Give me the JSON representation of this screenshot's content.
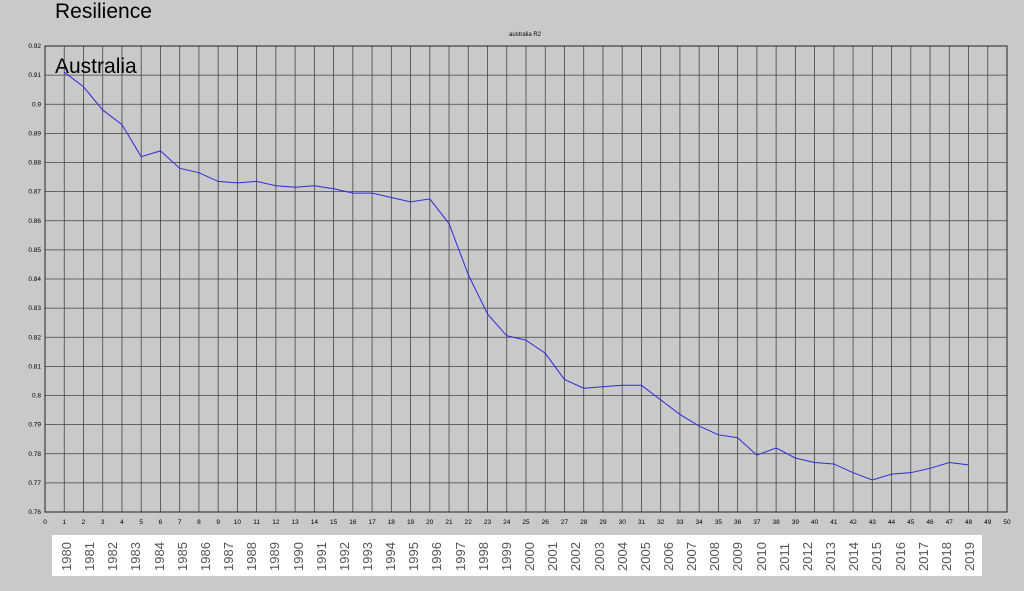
{
  "overlay": {
    "title": "Resilience",
    "subtitle": "Australia"
  },
  "chart_data": {
    "type": "line",
    "title": "australia R2",
    "xlabel": "",
    "ylabel": "",
    "xlim": [
      0,
      50
    ],
    "ylim": [
      0.76,
      0.92
    ],
    "x_ticks": [
      0,
      1,
      2,
      3,
      4,
      5,
      6,
      7,
      8,
      9,
      10,
      11,
      12,
      13,
      14,
      15,
      16,
      17,
      18,
      19,
      20,
      21,
      22,
      23,
      24,
      25,
      26,
      27,
      28,
      29,
      30,
      31,
      32,
      33,
      34,
      35,
      36,
      37,
      38,
      39,
      40,
      41,
      42,
      43,
      44,
      45,
      46,
      47,
      48,
      49,
      50
    ],
    "y_ticks": [
      "0.76",
      "0.77",
      "0.78",
      "0.79",
      "0.8",
      "0.81",
      "0.82",
      "0.83",
      "0.84",
      "0.85",
      "0.86",
      "0.87",
      "0.88",
      "0.89",
      "0.9",
      "0.91",
      "0.92"
    ],
    "grid": true,
    "series_color": "#2b2bdc",
    "x": [
      1,
      2,
      3,
      4,
      5,
      6,
      7,
      8,
      9,
      10,
      11,
      12,
      13,
      14,
      15,
      16,
      17,
      18,
      19,
      20,
      21,
      22,
      23,
      24,
      25,
      26,
      27,
      28,
      29,
      30,
      31,
      32,
      33,
      34,
      35,
      36,
      37,
      38,
      39,
      40,
      41,
      42,
      43,
      44,
      45,
      46,
      47,
      48
    ],
    "y": [
      0.911,
      0.906,
      0.898,
      0.893,
      0.882,
      0.884,
      0.878,
      0.8765,
      0.8735,
      0.873,
      0.8735,
      0.872,
      0.8715,
      0.872,
      0.871,
      0.8695,
      0.8695,
      0.868,
      0.8665,
      0.8675,
      0.859,
      0.8415,
      0.828,
      0.8205,
      0.819,
      0.8145,
      0.8055,
      0.8025,
      0.803,
      0.8035,
      0.8035,
      0.7985,
      0.7935,
      0.7895,
      0.7865,
      0.7855,
      0.7795,
      0.782,
      0.7785,
      0.777,
      0.7765,
      0.7735,
      0.771,
      0.773,
      0.7735,
      0.775,
      0.777,
      0.7762
    ]
  },
  "year_strip": {
    "years": [
      "1980",
      "1981",
      "1982",
      "1983",
      "1984",
      "1985",
      "1986",
      "1987",
      "1988",
      "1989",
      "1990",
      "1991",
      "1992",
      "1993",
      "1994",
      "1995",
      "1996",
      "1997",
      "1998",
      "1999",
      "2000",
      "2001",
      "2002",
      "2003",
      "2004",
      "2005",
      "2006",
      "2007",
      "2008",
      "2009",
      "2010",
      "2011",
      "2012",
      "2013",
      "2014",
      "2015",
      "2016",
      "2017",
      "2018",
      "2019"
    ]
  }
}
